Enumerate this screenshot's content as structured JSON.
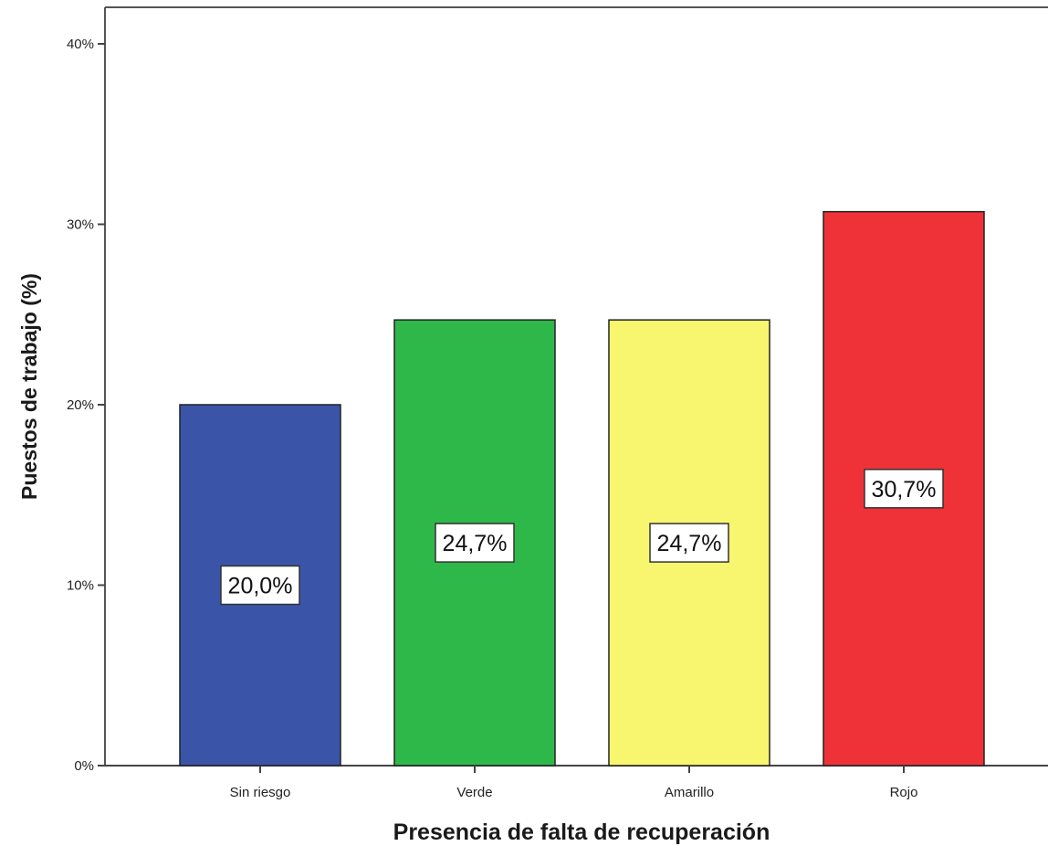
{
  "chart_data": {
    "type": "bar",
    "categories": [
      "Sin riesgo",
      "Verde",
      "Amarillo",
      "Rojo"
    ],
    "values": [
      20.0,
      24.7,
      24.7,
      30.7
    ],
    "data_labels": [
      "20,0%",
      "24,7%",
      "24,7%",
      "30,7%"
    ],
    "colors": [
      "#3a55a8",
      "#2fb84a",
      "#f8f66f",
      "#ef3238"
    ],
    "xlabel": "Presencia de falta de recuperación",
    "ylabel": "Puestos de trabajo (%)",
    "ylim": [
      0,
      40
    ],
    "yticks": [
      0,
      10,
      20,
      30,
      40
    ],
    "ytick_labels": [
      "0%",
      "10%",
      "20%",
      "30%",
      "40%"
    ],
    "grid": false,
    "legend": "none"
  }
}
